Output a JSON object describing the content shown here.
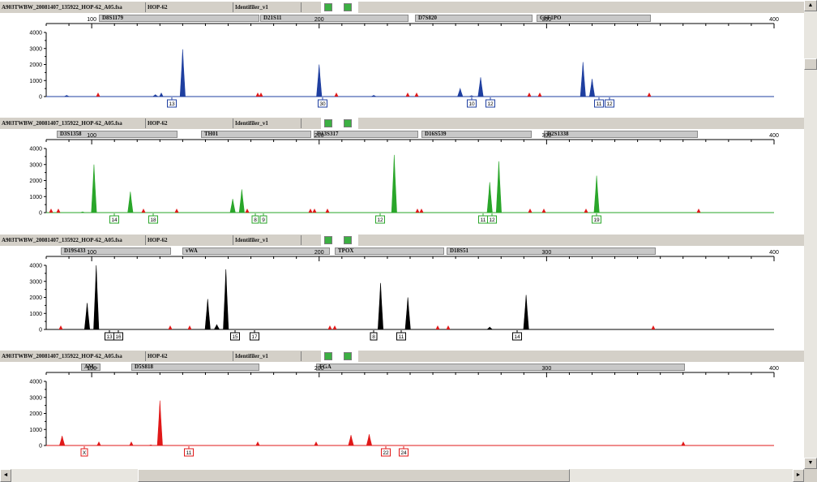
{
  "header": {
    "sample_file": "A903TWBW_20081407_135922_HOP-62_A05.fsa",
    "sample_name": "HOP-62",
    "panel": "Identifiler_v1"
  },
  "x_ticks": [
    "100",
    "200",
    "300",
    "400"
  ],
  "y_ticks": [
    "4000",
    "3000",
    "2000",
    "1000",
    "0"
  ],
  "scroll_glyphs": {
    "up": "▲",
    "down": "▼",
    "left": "◄",
    "right": "►"
  },
  "panels": [
    {
      "dye_color": "#1f3fa0",
      "markers": [
        {
          "name": "D8S1179"
        },
        {
          "name": "D21S11"
        },
        {
          "name": "D7S820"
        },
        {
          "name": "CSF1PO"
        }
      ],
      "alleles": [
        "13",
        "30",
        "10",
        "12",
        "11",
        "12"
      ]
    },
    {
      "dye_color": "#2aa62a",
      "markers": [
        {
          "name": "D3S1358"
        },
        {
          "name": "TH01"
        },
        {
          "name": "D13S317"
        },
        {
          "name": "D16S539"
        },
        {
          "name": "D2S1338"
        }
      ],
      "alleles": [
        "14",
        "18",
        "8",
        "9",
        "12",
        "11",
        "12",
        "19"
      ]
    },
    {
      "dye_color": "#000000",
      "markers": [
        {
          "name": "D19S433"
        },
        {
          "name": "vWA"
        },
        {
          "name": "TPOX"
        },
        {
          "name": "D18S51"
        }
      ],
      "alleles": [
        "13",
        "16",
        "15",
        "17",
        "8",
        "11",
        "14"
      ]
    },
    {
      "dye_color": "#e01818",
      "markers": [
        {
          "name": "AM..."
        },
        {
          "name": "D5S818"
        },
        {
          "name": "FGA"
        }
      ],
      "alleles": [
        "X",
        "11",
        "22",
        "24"
      ]
    }
  ],
  "chart_data": {
    "type": "line",
    "x_label": "",
    "y_label": "",
    "xlim": [
      80,
      400
    ],
    "ylim": [
      0,
      4000
    ],
    "series": [
      {
        "peaks": [
          {
            "x": 140,
            "h": 2950
          },
          {
            "x": 89,
            "h": 80
          },
          {
            "x": 200,
            "h": 2000
          },
          {
            "x": 262,
            "h": 500
          },
          {
            "x": 271,
            "h": 1200
          },
          {
            "x": 316,
            "h": 2150
          },
          {
            "x": 320,
            "h": 1100
          },
          {
            "x": 128,
            "h": 120
          },
          {
            "x": 267,
            "h": 60
          },
          {
            "x": 224,
            "h": 80
          }
        ]
      },
      {
        "peaks": [
          {
            "x": 101,
            "h": 3000
          },
          {
            "x": 117,
            "h": 1300
          },
          {
            "x": 162,
            "h": 850
          },
          {
            "x": 166,
            "h": 1450
          },
          {
            "x": 233,
            "h": 3600
          },
          {
            "x": 275,
            "h": 1900
          },
          {
            "x": 279,
            "h": 3200
          },
          {
            "x": 322,
            "h": 2300
          },
          {
            "x": 96,
            "h": 50
          }
        ]
      },
      {
        "peaks": [
          {
            "x": 98,
            "h": 1650
          },
          {
            "x": 102,
            "h": 4000
          },
          {
            "x": 151,
            "h": 1900
          },
          {
            "x": 159,
            "h": 3750
          },
          {
            "x": 227,
            "h": 2900
          },
          {
            "x": 239,
            "h": 2000
          },
          {
            "x": 275,
            "h": 150
          },
          {
            "x": 291,
            "h": 2150
          },
          {
            "x": 155,
            "h": 300
          }
        ]
      },
      {
        "peaks": [
          {
            "x": 87,
            "h": 600
          },
          {
            "x": 130,
            "h": 2800
          },
          {
            "x": 214,
            "h": 650
          },
          {
            "x": 222,
            "h": 700
          },
          {
            "x": 103,
            "h": 50
          },
          {
            "x": 126,
            "h": 40
          }
        ]
      }
    ]
  }
}
